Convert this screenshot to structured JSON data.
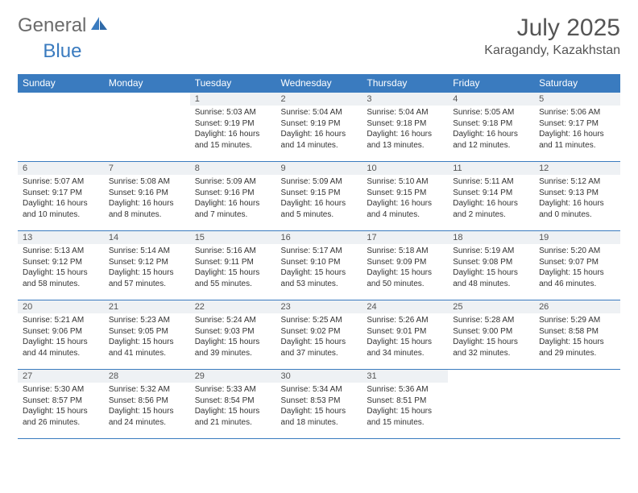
{
  "logo": {
    "text1": "General",
    "text2": "Blue"
  },
  "title": "July 2025",
  "location": "Karagandy, Kazakhstan",
  "colors": {
    "header_bg": "#3a7bbf",
    "header_text": "#ffffff",
    "daynum_bg": "#eef1f4",
    "border": "#3a7bbf",
    "text": "#333333"
  },
  "dayHeaders": [
    "Sunday",
    "Monday",
    "Tuesday",
    "Wednesday",
    "Thursday",
    "Friday",
    "Saturday"
  ],
  "weeks": [
    [
      null,
      null,
      {
        "n": "1",
        "l": [
          "Sunrise: 5:03 AM",
          "Sunset: 9:19 PM",
          "Daylight: 16 hours and 15 minutes."
        ]
      },
      {
        "n": "2",
        "l": [
          "Sunrise: 5:04 AM",
          "Sunset: 9:19 PM",
          "Daylight: 16 hours and 14 minutes."
        ]
      },
      {
        "n": "3",
        "l": [
          "Sunrise: 5:04 AM",
          "Sunset: 9:18 PM",
          "Daylight: 16 hours and 13 minutes."
        ]
      },
      {
        "n": "4",
        "l": [
          "Sunrise: 5:05 AM",
          "Sunset: 9:18 PM",
          "Daylight: 16 hours and 12 minutes."
        ]
      },
      {
        "n": "5",
        "l": [
          "Sunrise: 5:06 AM",
          "Sunset: 9:17 PM",
          "Daylight: 16 hours and 11 minutes."
        ]
      }
    ],
    [
      {
        "n": "6",
        "l": [
          "Sunrise: 5:07 AM",
          "Sunset: 9:17 PM",
          "Daylight: 16 hours and 10 minutes."
        ]
      },
      {
        "n": "7",
        "l": [
          "Sunrise: 5:08 AM",
          "Sunset: 9:16 PM",
          "Daylight: 16 hours and 8 minutes."
        ]
      },
      {
        "n": "8",
        "l": [
          "Sunrise: 5:09 AM",
          "Sunset: 9:16 PM",
          "Daylight: 16 hours and 7 minutes."
        ]
      },
      {
        "n": "9",
        "l": [
          "Sunrise: 5:09 AM",
          "Sunset: 9:15 PM",
          "Daylight: 16 hours and 5 minutes."
        ]
      },
      {
        "n": "10",
        "l": [
          "Sunrise: 5:10 AM",
          "Sunset: 9:15 PM",
          "Daylight: 16 hours and 4 minutes."
        ]
      },
      {
        "n": "11",
        "l": [
          "Sunrise: 5:11 AM",
          "Sunset: 9:14 PM",
          "Daylight: 16 hours and 2 minutes."
        ]
      },
      {
        "n": "12",
        "l": [
          "Sunrise: 5:12 AM",
          "Sunset: 9:13 PM",
          "Daylight: 16 hours and 0 minutes."
        ]
      }
    ],
    [
      {
        "n": "13",
        "l": [
          "Sunrise: 5:13 AM",
          "Sunset: 9:12 PM",
          "Daylight: 15 hours and 58 minutes."
        ]
      },
      {
        "n": "14",
        "l": [
          "Sunrise: 5:14 AM",
          "Sunset: 9:12 PM",
          "Daylight: 15 hours and 57 minutes."
        ]
      },
      {
        "n": "15",
        "l": [
          "Sunrise: 5:16 AM",
          "Sunset: 9:11 PM",
          "Daylight: 15 hours and 55 minutes."
        ]
      },
      {
        "n": "16",
        "l": [
          "Sunrise: 5:17 AM",
          "Sunset: 9:10 PM",
          "Daylight: 15 hours and 53 minutes."
        ]
      },
      {
        "n": "17",
        "l": [
          "Sunrise: 5:18 AM",
          "Sunset: 9:09 PM",
          "Daylight: 15 hours and 50 minutes."
        ]
      },
      {
        "n": "18",
        "l": [
          "Sunrise: 5:19 AM",
          "Sunset: 9:08 PM",
          "Daylight: 15 hours and 48 minutes."
        ]
      },
      {
        "n": "19",
        "l": [
          "Sunrise: 5:20 AM",
          "Sunset: 9:07 PM",
          "Daylight: 15 hours and 46 minutes."
        ]
      }
    ],
    [
      {
        "n": "20",
        "l": [
          "Sunrise: 5:21 AM",
          "Sunset: 9:06 PM",
          "Daylight: 15 hours and 44 minutes."
        ]
      },
      {
        "n": "21",
        "l": [
          "Sunrise: 5:23 AM",
          "Sunset: 9:05 PM",
          "Daylight: 15 hours and 41 minutes."
        ]
      },
      {
        "n": "22",
        "l": [
          "Sunrise: 5:24 AM",
          "Sunset: 9:03 PM",
          "Daylight: 15 hours and 39 minutes."
        ]
      },
      {
        "n": "23",
        "l": [
          "Sunrise: 5:25 AM",
          "Sunset: 9:02 PM",
          "Daylight: 15 hours and 37 minutes."
        ]
      },
      {
        "n": "24",
        "l": [
          "Sunrise: 5:26 AM",
          "Sunset: 9:01 PM",
          "Daylight: 15 hours and 34 minutes."
        ]
      },
      {
        "n": "25",
        "l": [
          "Sunrise: 5:28 AM",
          "Sunset: 9:00 PM",
          "Daylight: 15 hours and 32 minutes."
        ]
      },
      {
        "n": "26",
        "l": [
          "Sunrise: 5:29 AM",
          "Sunset: 8:58 PM",
          "Daylight: 15 hours and 29 minutes."
        ]
      }
    ],
    [
      {
        "n": "27",
        "l": [
          "Sunrise: 5:30 AM",
          "Sunset: 8:57 PM",
          "Daylight: 15 hours and 26 minutes."
        ]
      },
      {
        "n": "28",
        "l": [
          "Sunrise: 5:32 AM",
          "Sunset: 8:56 PM",
          "Daylight: 15 hours and 24 minutes."
        ]
      },
      {
        "n": "29",
        "l": [
          "Sunrise: 5:33 AM",
          "Sunset: 8:54 PM",
          "Daylight: 15 hours and 21 minutes."
        ]
      },
      {
        "n": "30",
        "l": [
          "Sunrise: 5:34 AM",
          "Sunset: 8:53 PM",
          "Daylight: 15 hours and 18 minutes."
        ]
      },
      {
        "n": "31",
        "l": [
          "Sunrise: 5:36 AM",
          "Sunset: 8:51 PM",
          "Daylight: 15 hours and 15 minutes."
        ]
      },
      null,
      null
    ]
  ]
}
